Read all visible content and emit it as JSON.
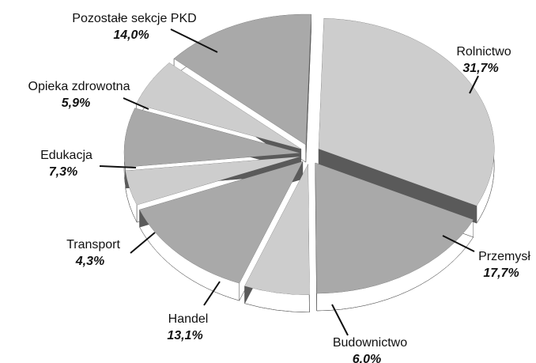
{
  "chart_data": {
    "type": "pie",
    "categories": [
      "Rolnictwo",
      "Przemysł",
      "Budownictwo",
      "Handel",
      "Transport",
      "Edukacja",
      "Opieka zdrowotna",
      "Pozostałe sekcje PKD"
    ],
    "values": [
      31.7,
      17.7,
      6.0,
      13.1,
      4.3,
      7.3,
      5.9,
      14.0
    ],
    "value_labels": [
      "31,7%",
      "17,7%",
      "6.0%",
      "13,1%",
      "4,3%",
      "7,3%",
      "5,9%",
      "14,0%"
    ],
    "colors": [
      "#cdcdcd",
      "#a9a9a9",
      "#cdcdcd",
      "#a9a9a9",
      "#cdcdcd",
      "#a9a9a9",
      "#cdcdcd",
      "#a9a9a9"
    ]
  }
}
